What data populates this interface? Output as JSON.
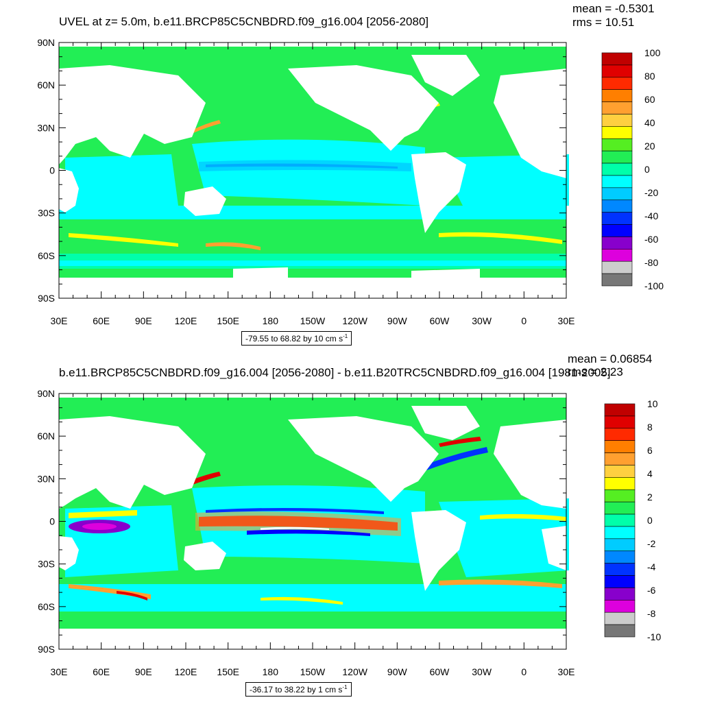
{
  "panels": [
    {
      "id": "top",
      "title": "UVEL at z=   5.0m, b.e11.BRCP85C5CNBDRD.f09_g16.004 [2056-2080]",
      "mean_text": "mean = -0.5301",
      "rms_text": "rms = 10.51",
      "range_text": "-79.55 to 68.82 by 10 cm s",
      "range_sup": "-1",
      "colorbar_labels": [
        "100",
        "80",
        "60",
        "40",
        "20",
        "0",
        "-20",
        "-40",
        "-60",
        "-80",
        "-100"
      ],
      "colorbar_colors": [
        "#c00000",
        "#e00000",
        "#ff2a00",
        "#ff7f00",
        "#ffa030",
        "#ffd040",
        "#ffff00",
        "#55ee22",
        "#22ee55",
        "#00ffaa",
        "#00ffff",
        "#00ccff",
        "#0088ff",
        "#0033ff",
        "#0000ff",
        "#8800cc",
        "#dd00dd",
        "#cccccc",
        "#777777"
      ]
    },
    {
      "id": "bottom",
      "title": "b.e11.BRCP85C5CNBDRD.f09_g16.004 [2056-2080] - b.e11.B20TRC5CNBDRD.f09_g16.004 [1981-2005]",
      "mean_text": "mean = 0.06854",
      "rms_text": "rms = 2.23",
      "range_text": "-36.17 to 38.22 by 1 cm s",
      "range_sup": "-1",
      "colorbar_labels": [
        "10",
        "8",
        "6",
        "4",
        "2",
        "0",
        "-2",
        "-4",
        "-6",
        "-8",
        "-10"
      ],
      "colorbar_colors": [
        "#c00000",
        "#e00000",
        "#ff2a00",
        "#ff7f00",
        "#ffa030",
        "#ffd040",
        "#ffff00",
        "#55ee22",
        "#22ee55",
        "#00ffaa",
        "#00ffff",
        "#00ccff",
        "#0088ff",
        "#0033ff",
        "#0000ff",
        "#8800cc",
        "#dd00dd",
        "#cccccc",
        "#777777"
      ]
    }
  ],
  "lat_labels": [
    "90N",
    "60N",
    "30N",
    "0",
    "30S",
    "60S",
    "90S"
  ],
  "lon_labels": [
    "30E",
    "60E",
    "90E",
    "120E",
    "150E",
    "180",
    "150W",
    "120W",
    "90W",
    "60W",
    "30W",
    "0",
    "30E"
  ],
  "colors": {
    "ocean_base": "#22ee55",
    "cyan": "#00ffff",
    "aqua": "#00ffaa",
    "lightblue": "#00ccff",
    "blue": "#0033ff",
    "purple": "#8800cc",
    "yellow": "#ffff00",
    "orange": "#ffa030",
    "red": "#e00000",
    "land": "#ffffff"
  }
}
